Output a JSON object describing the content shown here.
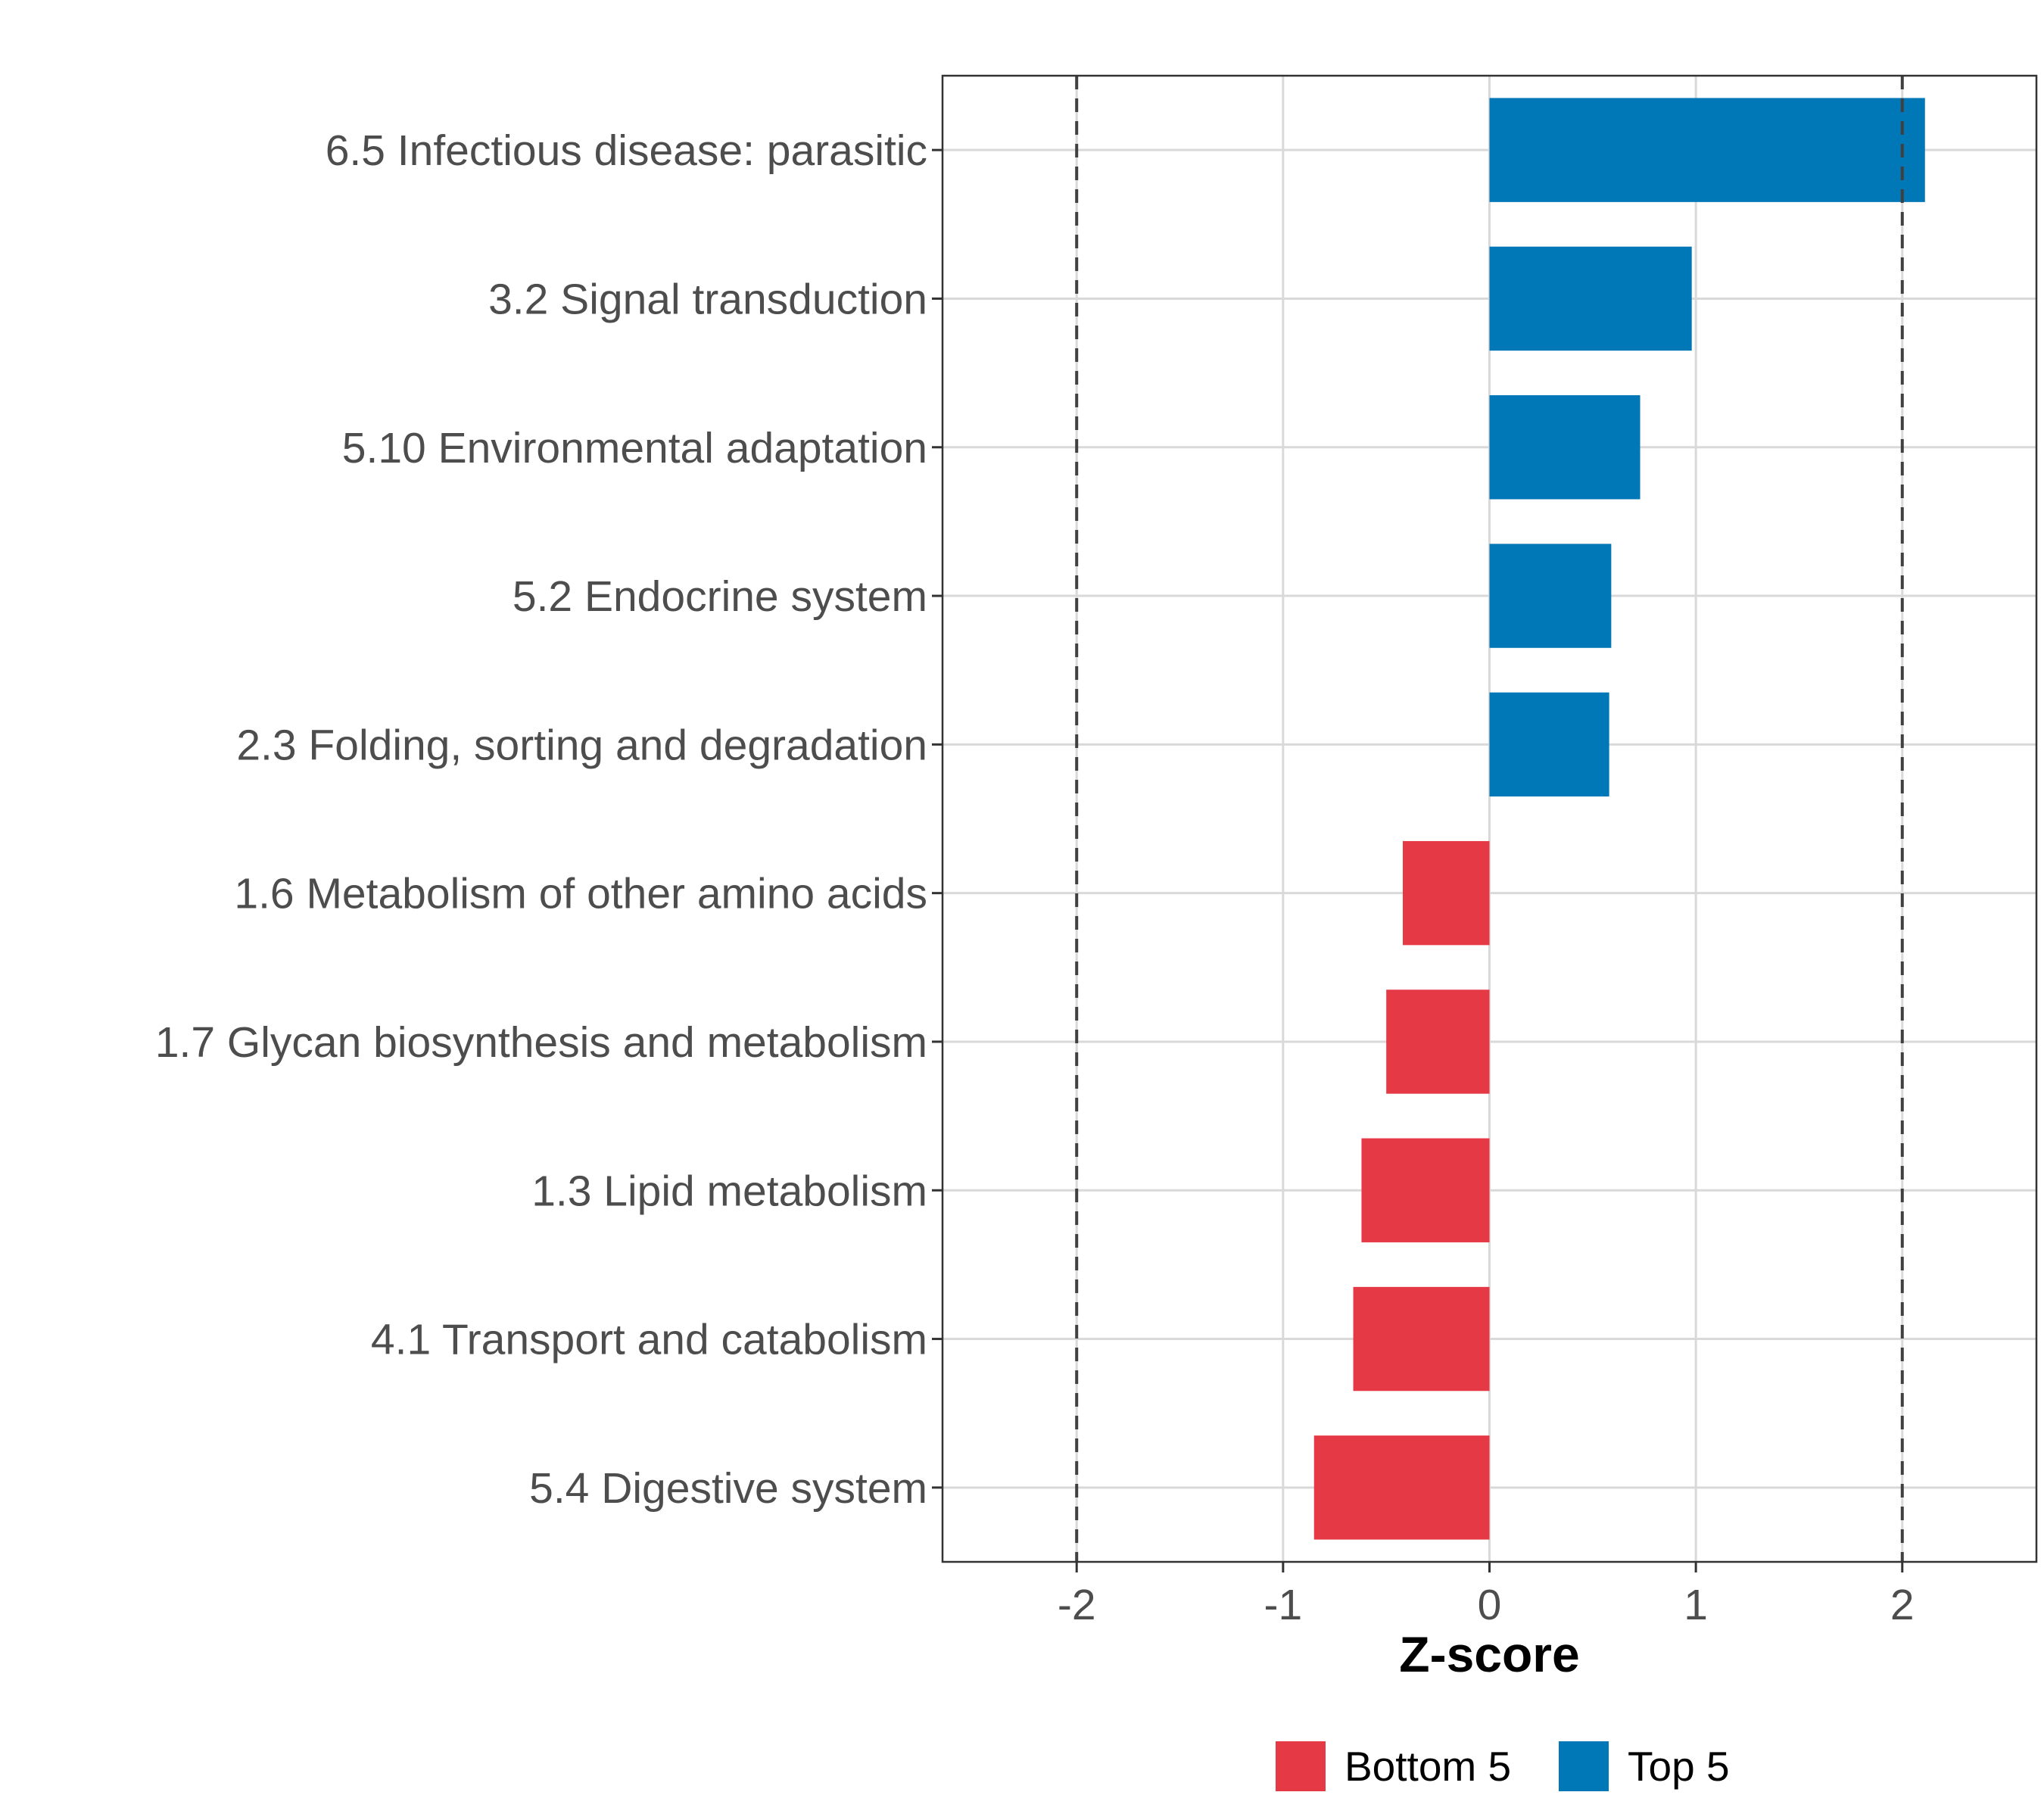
{
  "chart_data": {
    "type": "bar",
    "orientation": "horizontal",
    "title": "",
    "xlabel": "Z-score",
    "ylabel": "",
    "xlim": [
      -2.65,
      2.65
    ],
    "xticks": [
      -2,
      -1,
      0,
      1,
      2
    ],
    "xtick_labels": [
      "-2",
      "-1",
      "0",
      "1",
      "2"
    ],
    "reference_lines": [
      -2,
      2
    ],
    "grid": true,
    "categories": [
      "6.5 Infectious disease: parasitic",
      "3.2 Signal transduction",
      "5.10 Environmental adaptation",
      "5.2 Endocrine system",
      "2.3 Folding, sorting and degradation",
      "1.6 Metabolism of other amino acids",
      "1.7 Glycan biosynthesis and metabolism",
      "1.3 Lipid metabolism",
      "4.1 Transport and catabolism",
      "5.4 Digestive system"
    ],
    "values": [
      2.11,
      0.98,
      0.73,
      0.59,
      0.58,
      -0.42,
      -0.5,
      -0.62,
      -0.66,
      -0.85
    ],
    "groups": [
      "Top 5",
      "Top 5",
      "Top 5",
      "Top 5",
      "Top 5",
      "Bottom 5",
      "Bottom 5",
      "Bottom 5",
      "Bottom 5",
      "Bottom 5"
    ],
    "legend": {
      "position": "bottom",
      "entries": [
        {
          "label": "Bottom 5",
          "color": "#E63946"
        },
        {
          "label": "Top 5",
          "color": "#0077B6"
        }
      ]
    }
  }
}
